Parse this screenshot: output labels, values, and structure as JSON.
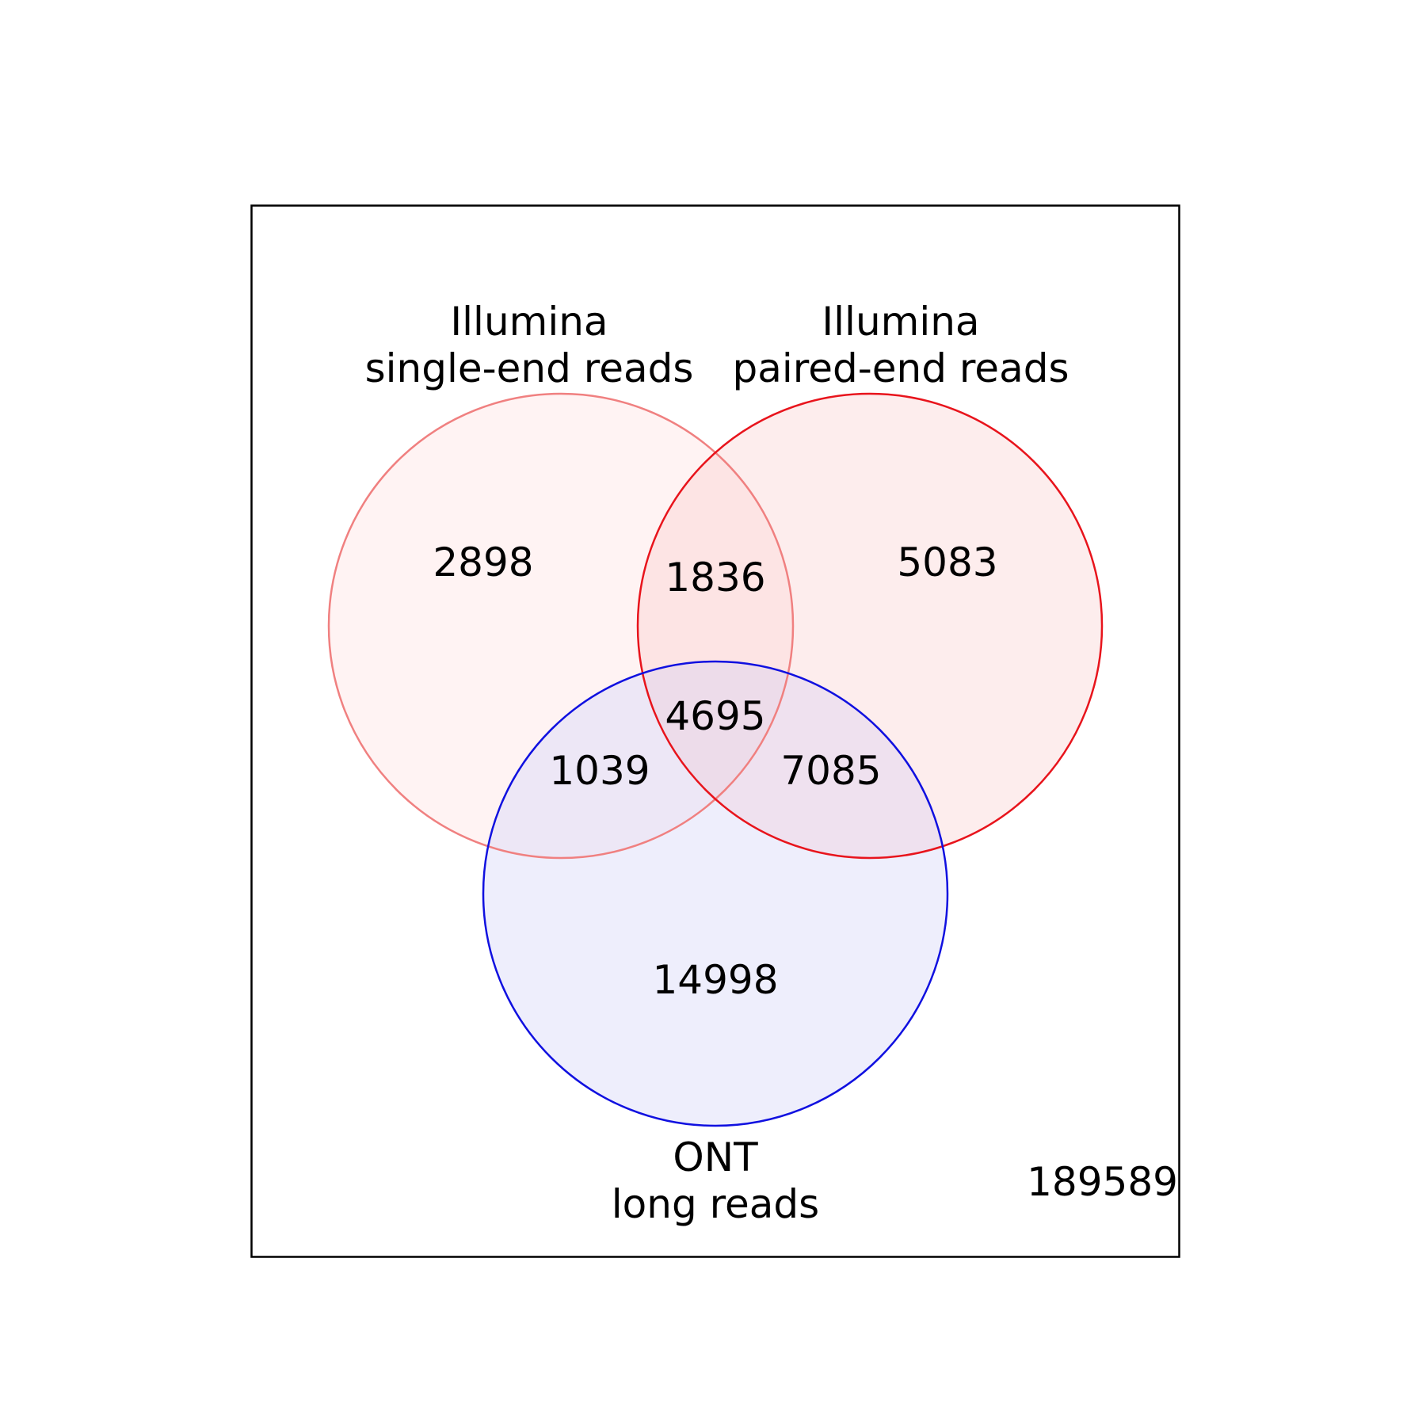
{
  "diagram": {
    "type": "venn3",
    "sets": [
      {
        "label_line1": "Illumina",
        "label_line2": "single-end reads",
        "edge_color": "#f08080",
        "fill_color": "#fff3f3"
      },
      {
        "label_line1": "Illumina",
        "label_line2": "paired-end reads",
        "edge_color": "#e8141c",
        "fill_color": "#fdeded"
      },
      {
        "label_line1": "ONT",
        "label_line2": "long reads",
        "edge_color": "#1010e0",
        "fill_color": "#eeeefc"
      }
    ],
    "regions": {
      "single_end_only": "2898",
      "paired_end_only": "5083",
      "ont_only": "14998",
      "single_and_paired": "1836",
      "single_and_ont": "1039",
      "paired_and_ont": "7085",
      "all_three": "4695",
      "none": "189589"
    },
    "overlap_colors": {
      "single_and_paired": "#fde4e4",
      "single_and_ont": "#ede7f6",
      "paired_and_ont": "#efe1ef",
      "all_three": "#eddcea"
    }
  }
}
